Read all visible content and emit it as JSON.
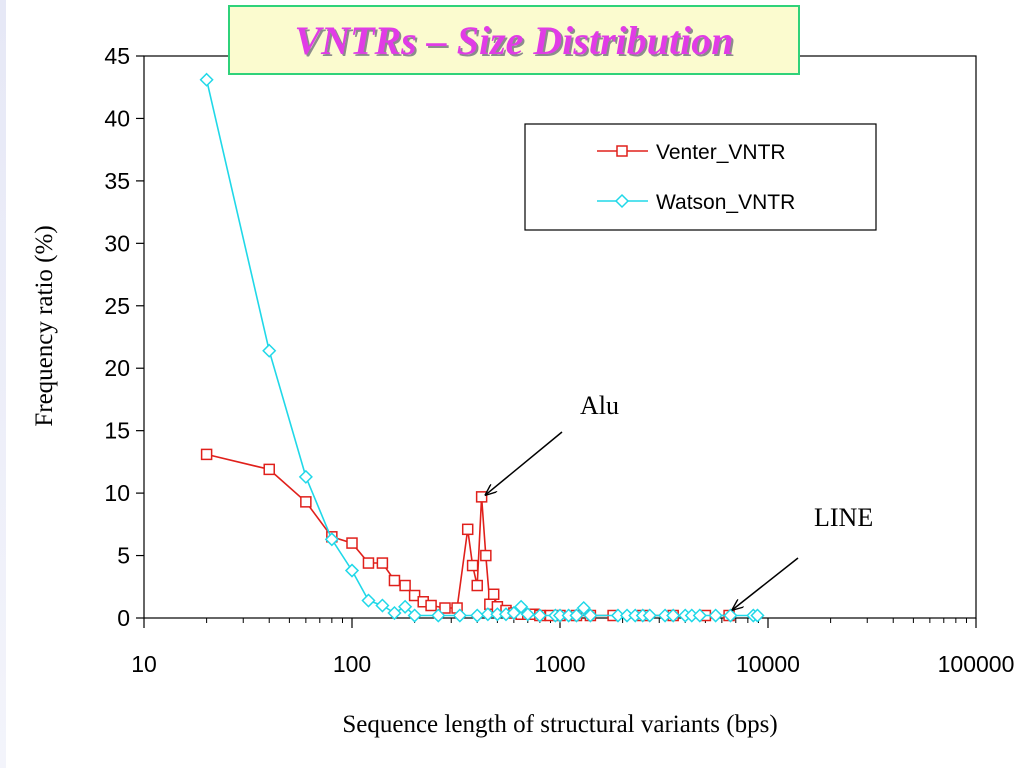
{
  "chart_data": {
    "type": "line",
    "title": "VNTRs – Size Distribution",
    "xlabel": "Sequence length of structural variants (bps)",
    "ylabel": "Frequency ratio (%)",
    "xscale": "log",
    "xlim": [
      10,
      100000
    ],
    "ylim": [
      0,
      45
    ],
    "x_ticks": [
      "10",
      "100",
      "1000",
      "10000",
      "100000"
    ],
    "y_ticks": [
      "0",
      "5",
      "10",
      "15",
      "20",
      "25",
      "30",
      "35",
      "40",
      "45"
    ],
    "legend_position": "top-right",
    "grid": false,
    "series": [
      {
        "name": "Venter_VNTR",
        "color": "#e0201b",
        "marker": "square",
        "points": [
          [
            20,
            13.1
          ],
          [
            40,
            11.9
          ],
          [
            60,
            9.3
          ],
          [
            80,
            6.5
          ],
          [
            100,
            6.0
          ],
          [
            120,
            4.4
          ],
          [
            140,
            4.4
          ],
          [
            160,
            3.0
          ],
          [
            180,
            2.6
          ],
          [
            200,
            1.8
          ],
          [
            220,
            1.3
          ],
          [
            240,
            1.0
          ],
          [
            280,
            0.8
          ],
          [
            320,
            0.8
          ],
          [
            360,
            7.1
          ],
          [
            380,
            4.2
          ],
          [
            400,
            2.6
          ],
          [
            420,
            9.7
          ],
          [
            440,
            5.0
          ],
          [
            460,
            1.1
          ],
          [
            480,
            1.9
          ],
          [
            500,
            0.9
          ],
          [
            550,
            0.6
          ],
          [
            600,
            0.4
          ],
          [
            650,
            0.3
          ],
          [
            700,
            0.3
          ],
          [
            750,
            0.3
          ],
          [
            800,
            0.2
          ],
          [
            900,
            0.2
          ],
          [
            1000,
            0.2
          ],
          [
            1200,
            0.2
          ],
          [
            1400,
            0.2
          ],
          [
            1800,
            0.2
          ],
          [
            2500,
            0.2
          ],
          [
            3500,
            0.2
          ],
          [
            5000,
            0.2
          ],
          [
            6500,
            0.2
          ]
        ]
      },
      {
        "name": "Watson_VNTR",
        "color": "#20d8e8",
        "marker": "diamond",
        "points": [
          [
            20,
            43.1
          ],
          [
            40,
            21.4
          ],
          [
            60,
            11.3
          ],
          [
            80,
            6.3
          ],
          [
            100,
            3.8
          ],
          [
            120,
            1.4
          ],
          [
            140,
            1.0
          ],
          [
            160,
            0.4
          ],
          [
            180,
            0.9
          ],
          [
            200,
            0.2
          ],
          [
            260,
            0.2
          ],
          [
            330,
            0.2
          ],
          [
            400,
            0.2
          ],
          [
            450,
            0.3
          ],
          [
            500,
            0.3
          ],
          [
            550,
            0.3
          ],
          [
            600,
            0.4
          ],
          [
            650,
            0.9
          ],
          [
            700,
            0.3
          ],
          [
            800,
            0.2
          ],
          [
            950,
            0.2
          ],
          [
            1000,
            0.2
          ],
          [
            1100,
            0.2
          ],
          [
            1200,
            0.2
          ],
          [
            1300,
            0.8
          ],
          [
            1400,
            0.2
          ],
          [
            1900,
            0.2
          ],
          [
            2100,
            0.2
          ],
          [
            2300,
            0.2
          ],
          [
            2500,
            0.2
          ],
          [
            2700,
            0.2
          ],
          [
            3200,
            0.2
          ],
          [
            3500,
            0.2
          ],
          [
            4000,
            0.2
          ],
          [
            4300,
            0.2
          ],
          [
            4700,
            0.2
          ],
          [
            5600,
            0.2
          ],
          [
            6600,
            0.2
          ],
          [
            8500,
            0.2
          ],
          [
            8900,
            0.2
          ]
        ]
      }
    ],
    "annotations": [
      {
        "text": "Alu",
        "x": 420,
        "y": 9.7
      },
      {
        "text": "LINE",
        "x": 6600,
        "y": 0.5
      }
    ]
  }
}
